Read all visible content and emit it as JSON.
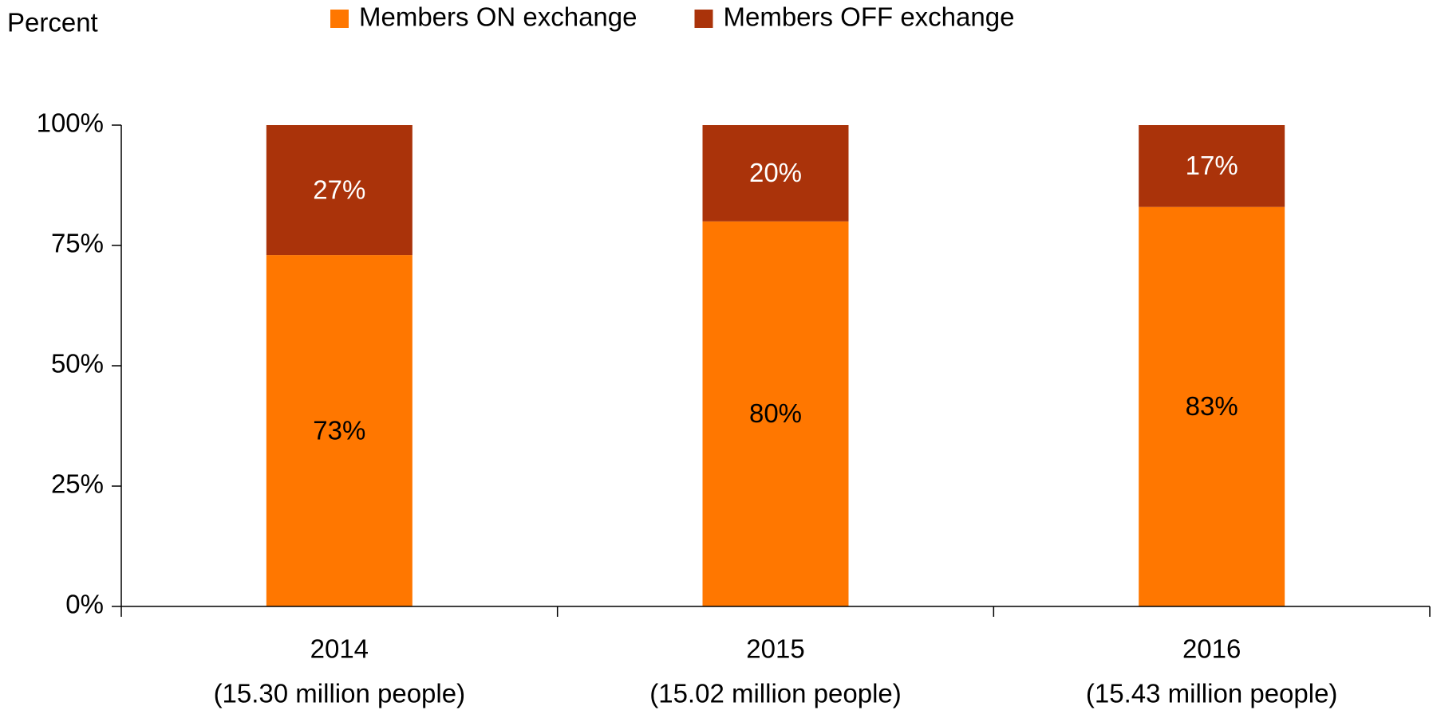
{
  "chart_data": {
    "type": "stacked_bar",
    "y_label": "Percent",
    "categories": [
      "2014",
      "2015",
      "2016"
    ],
    "category_notes": [
      "(15.30 million people)",
      "(15.02 million people)",
      "(15.43 million people)"
    ],
    "series": [
      {
        "name": "Members ON exchange",
        "color": "#ff7700",
        "label_color": "#000000",
        "values": [
          73,
          80,
          83
        ],
        "value_labels": [
          "73%",
          "80%",
          "83%"
        ]
      },
      {
        "name": "Members OFF exchange",
        "color": "#aa330a",
        "label_color": "#ffffff",
        "values": [
          27,
          20,
          17
        ],
        "value_labels": [
          "27%",
          "20%",
          "17%"
        ]
      }
    ],
    "ylim": [
      0,
      100
    ],
    "yticks": [
      {
        "value": 0,
        "label": "0%"
      },
      {
        "value": 25,
        "label": "25%"
      },
      {
        "value": 50,
        "label": "50%"
      },
      {
        "value": 75,
        "label": "75%"
      },
      {
        "value": 100,
        "label": "100%"
      }
    ],
    "grid": false,
    "legend": "top"
  }
}
